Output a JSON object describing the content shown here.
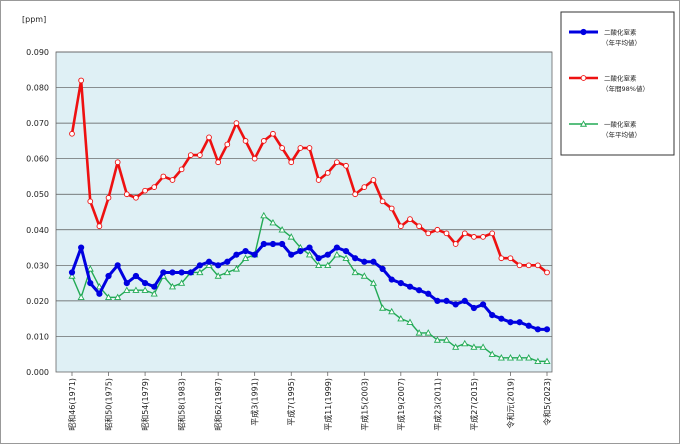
{
  "chart_data": {
    "type": "line",
    "yunit": "[ppm]",
    "ylim": [
      0,
      0.09
    ],
    "yticks": [
      0.0,
      0.01,
      0.02,
      0.03,
      0.04,
      0.05,
      0.06,
      0.07,
      0.08,
      0.09
    ],
    "ytick_labels": [
      "0.000",
      "0.010",
      "0.020",
      "0.030",
      "0.040",
      "0.050",
      "0.060",
      "0.070",
      "0.080",
      "0.090"
    ],
    "grid": "horizontal",
    "legend_position": "right",
    "x_years": [
      1971,
      1972,
      1973,
      1974,
      1975,
      1976,
      1977,
      1978,
      1979,
      1980,
      1981,
      1982,
      1983,
      1984,
      1985,
      1986,
      1987,
      1988,
      1989,
      1990,
      1991,
      1992,
      1993,
      1994,
      1995,
      1996,
      1997,
      1998,
      1999,
      2000,
      2001,
      2002,
      2003,
      2004,
      2005,
      2006,
      2007,
      2008,
      2009,
      2010,
      2011,
      2012,
      2013,
      2014,
      2015,
      2016,
      2017,
      2018,
      2019,
      2020,
      2021,
      2022,
      2023
    ],
    "x_tick_years": [
      1971,
      1975,
      1979,
      1983,
      1987,
      1991,
      1995,
      1999,
      2003,
      2007,
      2011,
      2015,
      2019,
      2023
    ],
    "x_tick_labels": [
      "昭和46(1971)",
      "昭和50(1975)",
      "昭和54(1979)",
      "昭和58(1983)",
      "昭和62(1987)",
      "平成3(1991)",
      "平成7(1995)",
      "平成11(1999)",
      "平成15(2003)",
      "平成19(2007)",
      "平成23(2011)",
      "平成27(2015)",
      "令和元(2019)",
      "令和5(2023)"
    ],
    "series": [
      {
        "name": "二酸化窒素",
        "sub": "（年平均値）",
        "color": "#0000e0",
        "marker": "circle-filled",
        "values": [
          0.028,
          0.035,
          0.025,
          0.022,
          0.027,
          0.03,
          0.025,
          0.027,
          0.025,
          0.024,
          0.028,
          0.028,
          0.028,
          0.028,
          0.03,
          0.031,
          0.03,
          0.031,
          0.033,
          0.034,
          0.033,
          0.036,
          0.036,
          0.036,
          0.033,
          0.034,
          0.035,
          0.032,
          0.033,
          0.035,
          0.034,
          0.032,
          0.031,
          0.031,
          0.029,
          0.026,
          0.025,
          0.024,
          0.023,
          0.022,
          0.02,
          0.02,
          0.019,
          0.02,
          0.018,
          0.019,
          0.016,
          0.015,
          0.014,
          0.014,
          0.013,
          0.012,
          0.012
        ]
      },
      {
        "name": "二酸化窒素",
        "sub": "（年間98%値）",
        "color": "#ee1111",
        "marker": "circle-open",
        "values": [
          0.067,
          0.082,
          0.048,
          0.041,
          0.049,
          0.059,
          0.05,
          0.049,
          0.051,
          0.052,
          0.055,
          0.054,
          0.057,
          0.061,
          0.061,
          0.066,
          0.059,
          0.064,
          0.07,
          0.065,
          0.06,
          0.065,
          0.067,
          0.063,
          0.059,
          0.063,
          0.063,
          0.054,
          0.056,
          0.059,
          0.058,
          0.05,
          0.052,
          0.054,
          0.048,
          0.046,
          0.041,
          0.043,
          0.041,
          0.039,
          0.04,
          0.039,
          0.036,
          0.039,
          0.038,
          0.038,
          0.039,
          0.032,
          0.032,
          0.03,
          0.03,
          0.03,
          0.028
        ]
      },
      {
        "name": "一酸化窒素",
        "sub": "（年平均値）",
        "color": "#22aa55",
        "marker": "triangle-open",
        "values": [
          0.027,
          0.021,
          0.029,
          0.024,
          0.021,
          0.021,
          0.023,
          0.023,
          0.023,
          0.022,
          0.027,
          0.024,
          0.025,
          0.028,
          0.028,
          0.03,
          0.027,
          0.028,
          0.029,
          0.032,
          0.033,
          0.044,
          0.042,
          0.04,
          0.038,
          0.035,
          0.033,
          0.03,
          0.03,
          0.033,
          0.032,
          0.028,
          0.027,
          0.025,
          0.018,
          0.017,
          0.015,
          0.014,
          0.011,
          0.011,
          0.009,
          0.009,
          0.007,
          0.008,
          0.007,
          0.007,
          0.005,
          0.004,
          0.004,
          0.004,
          0.004,
          0.003,
          0.003
        ]
      }
    ]
  }
}
